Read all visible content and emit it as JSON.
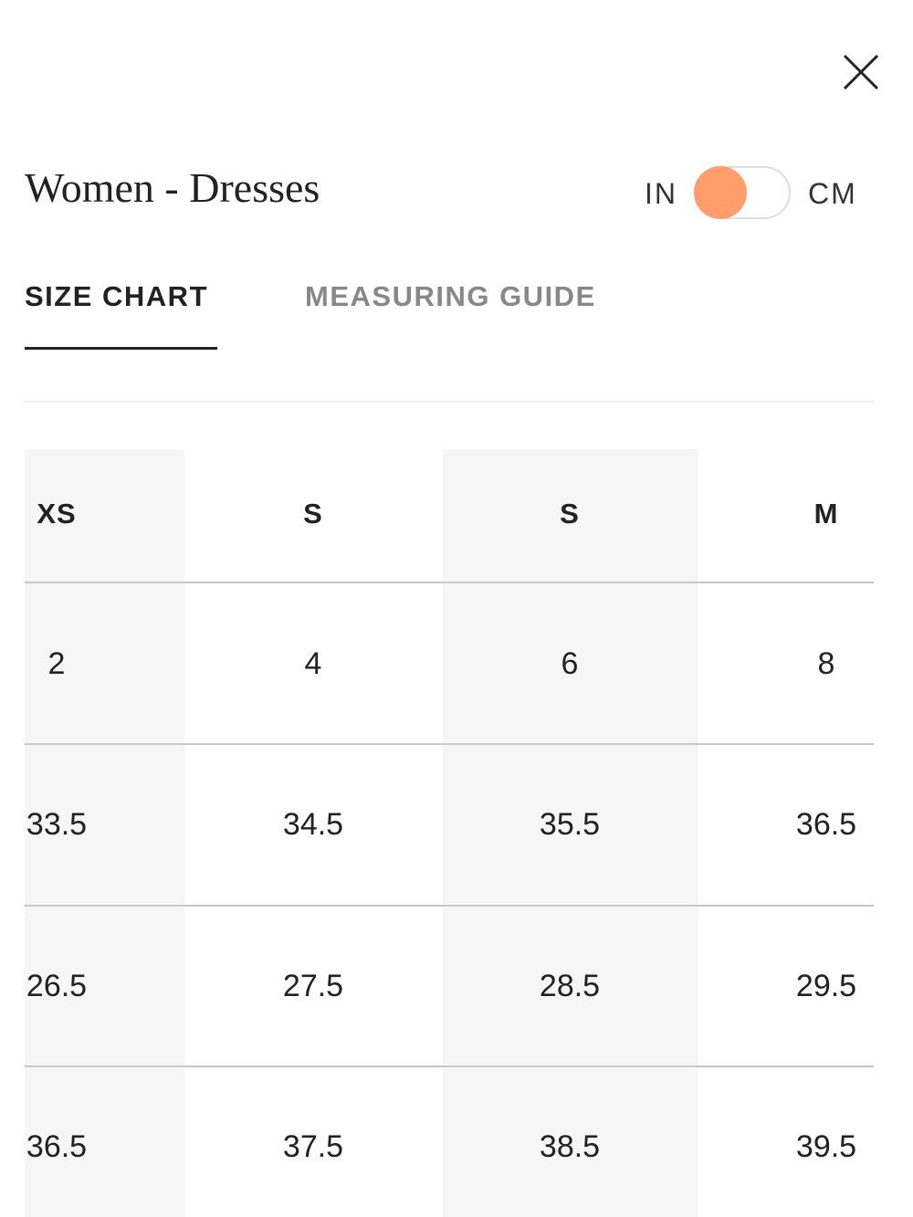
{
  "header": {
    "title": "Women - Dresses",
    "unit_left": "IN",
    "unit_right": "CM"
  },
  "tabs": [
    "SIZE CHART",
    "MEASURING GUIDE"
  ],
  "table": {
    "rows": [
      [
        "XS",
        "S",
        "S",
        "M"
      ],
      [
        "2",
        "4",
        "6",
        "8"
      ],
      [
        "33.5",
        "34.5",
        "35.5",
        "36.5"
      ],
      [
        "26.5",
        "27.5",
        "28.5",
        "29.5"
      ],
      [
        "36.5",
        "37.5",
        "38.5",
        "39.5"
      ]
    ]
  }
}
